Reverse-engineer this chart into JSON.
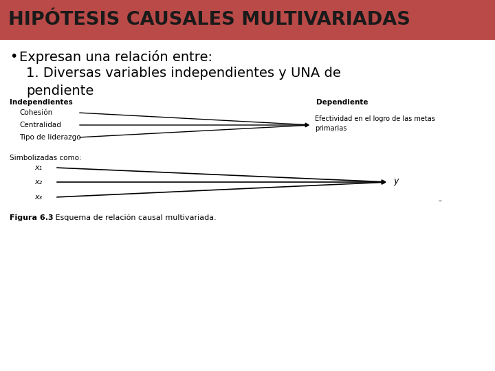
{
  "title": "HIPÓTESIS CAUSALES MULTIVARIADAS",
  "title_bg_color": "#b94a48",
  "title_text_color": "#1a1a1a",
  "bg_color": "#ffffff",
  "bullet_line1": "Expresan una relación entre:",
  "numbered_line1": "1. Diversas variables independientes y UNA de",
  "numbered_line2": "pendiente",
  "diagram1_label_indep": "Independientes",
  "diagram1_label_dep": "Dependiente",
  "diagram1_indep_items": [
    "Cohesión",
    "Centralidad",
    "Tipo de liderazgo"
  ],
  "diagram1_dep_item": "Efectividad en el logro de las metas\nprimarias",
  "diagram2_label": "Simbolizadas como:",
  "diagram2_indep_items": [
    "x₁",
    "x₂",
    "x₃"
  ],
  "diagram2_dep_item": "y",
  "caption_bold": "Figura 6.3",
  "caption_normal": "   Esquema de relación causal multivariada."
}
